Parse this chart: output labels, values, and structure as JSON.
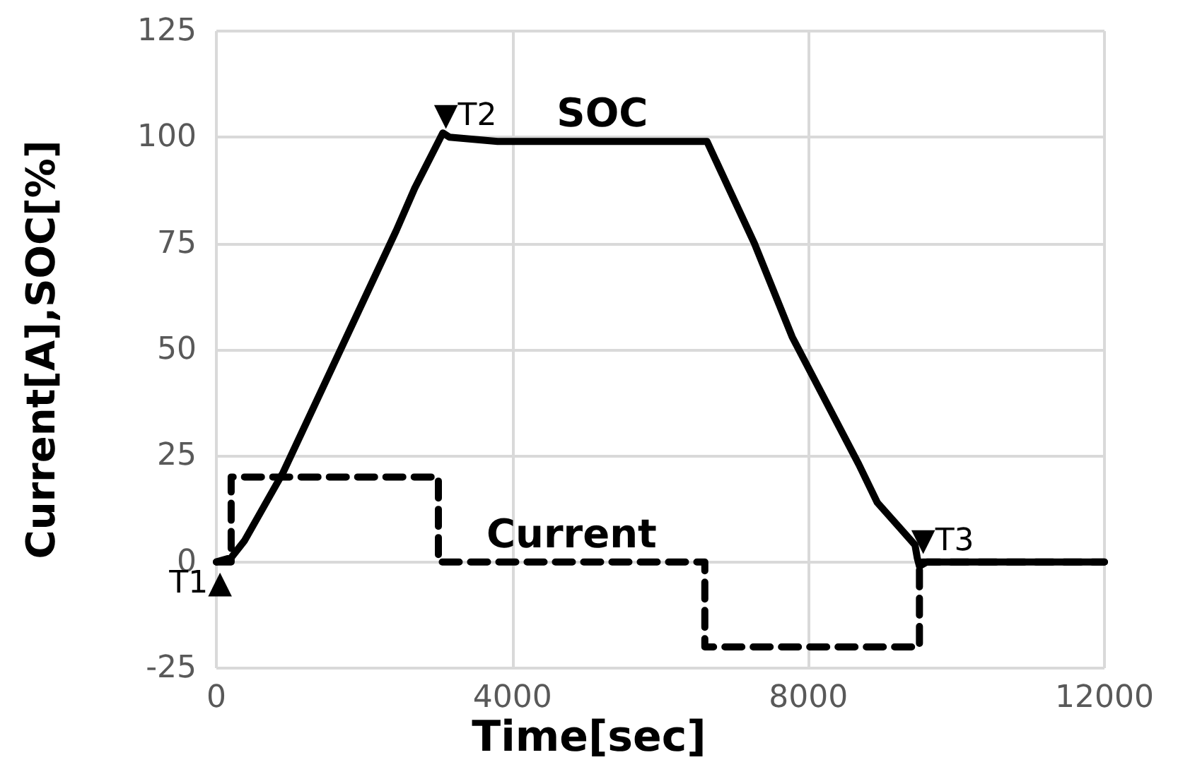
{
  "chart_data": {
    "type": "line",
    "xlabel": "Time[sec]",
    "ylabel": "Current[A],SOC[%]",
    "xlim": [
      0,
      12000
    ],
    "xticks": [
      0,
      4000,
      8000,
      12000
    ],
    "ylim": [
      -25,
      125
    ],
    "yticks": [
      -25,
      0,
      25,
      50,
      75,
      100,
      125
    ],
    "grid": true,
    "legend": false,
    "marker": "none",
    "series": [
      {
        "name": "SOC",
        "color": "#000000",
        "line_style": "solid",
        "x": [
          0,
          200,
          380,
          900,
          2430,
          2680,
          3060,
          3150,
          3800,
          6630,
          7270,
          7780,
          8680,
          8930,
          9440,
          9470,
          9500,
          9600,
          12000
        ],
        "values": [
          0,
          1,
          5,
          21,
          78,
          88,
          101,
          100,
          99,
          99,
          75,
          53,
          23,
          14,
          4,
          1,
          -1,
          0,
          0
        ]
      },
      {
        "name": "Current",
        "color": "#000000",
        "line_style": "dashed",
        "type": "step",
        "x": [
          0,
          200,
          3000,
          6600,
          9500,
          12000
        ],
        "values": [
          0,
          20,
          0,
          -20,
          0,
          0
        ]
      }
    ],
    "annotations": [
      {
        "text": "T1▲",
        "x": 0,
        "y": 0
      },
      {
        "text": "▼T2",
        "x": 3150,
        "y": 100
      },
      {
        "text": "▼T3",
        "x": 9600,
        "y": 0
      }
    ]
  }
}
